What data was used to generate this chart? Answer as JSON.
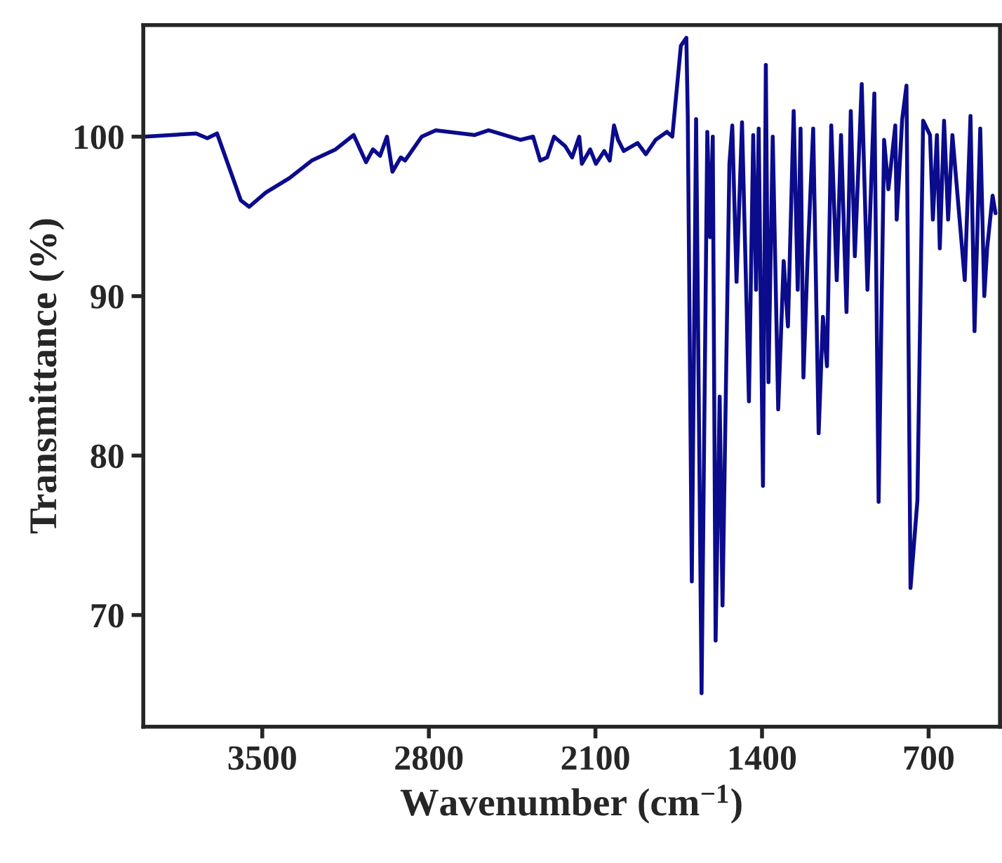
{
  "chart_data": {
    "type": "line",
    "xlabel": "Wavenumber (cm$^{−1}$)",
    "ylabel": "Transmittance (%)",
    "xlim": [
      4000,
      400
    ],
    "xticks": [
      3500,
      2800,
      2100,
      1400,
      700
    ],
    "ylim": [
      63,
      107
    ],
    "yticks": [
      70,
      80,
      90,
      100
    ],
    "grid": false,
    "legend": false,
    "marker": "none",
    "line_style": "solid",
    "series": [
      {
        "color": "#0b0b8c",
        "x": [
          3994,
          3778,
          3731,
          3690,
          3590,
          3555,
          3485,
          3386,
          3292,
          3192,
          3116,
          3064,
          3035,
          3005,
          2976,
          2953,
          2918,
          2900,
          2830,
          2771,
          2607,
          2549,
          2414,
          2362,
          2332,
          2303,
          2274,
          2227,
          2198,
          2168,
          2157,
          2122,
          2098,
          2063,
          2040,
          2022,
          2005,
          1981,
          1923,
          1888,
          1847,
          1800,
          1777,
          1741,
          1718,
          1712,
          1695,
          1677,
          1654,
          1630,
          1618,
          1607,
          1595,
          1578,
          1566,
          1537,
          1525,
          1507,
          1484,
          1455,
          1437,
          1425,
          1414,
          1396,
          1384,
          1373,
          1355,
          1332,
          1309,
          1291,
          1267,
          1250,
          1238,
          1226,
          1209,
          1185,
          1162,
          1144,
          1127,
          1109,
          1086,
          1068,
          1045,
          1027,
          1010,
          981,
          957,
          928,
          910,
          887,
          869,
          840,
          834,
          811,
          793,
          776,
          747,
          723,
          694,
          682,
          665,
          653,
          635,
          618,
          600,
          548,
          524,
          507,
          483,
          466,
          454,
          431,
          419
        ],
        "values": [
          100,
          100.2,
          99.9,
          100.2,
          96,
          95.6,
          96.5,
          97.4,
          98.5,
          99.2,
          100.1,
          98.4,
          99.2,
          98.8,
          100,
          97.8,
          98.7,
          98.5,
          100,
          100.4,
          100.1,
          100.4,
          99.8,
          100,
          98.5,
          98.7,
          100,
          99.4,
          98.7,
          100,
          98.3,
          99.2,
          98.3,
          99.1,
          98.5,
          100.7,
          99.8,
          99.1,
          99.6,
          98.9,
          99.8,
          100.3,
          100,
          105.7,
          106.2,
          101.3,
          72.1,
          101.1,
          65.1,
          100.3,
          93.7,
          100,
          68.4,
          83.7,
          70.6,
          98.3,
          100.7,
          90.9,
          100.9,
          83.4,
          100.1,
          90.4,
          100.5,
          78.1,
          104.5,
          84.6,
          100,
          82.9,
          92.2,
          88.1,
          101.6,
          90.4,
          100.5,
          84.9,
          92.2,
          100.5,
          81.4,
          88.7,
          85.6,
          100.7,
          91,
          100.1,
          89,
          101.6,
          92.5,
          103.3,
          90.4,
          102.7,
          77.1,
          99.8,
          96.7,
          100.7,
          94.8,
          101.1,
          103.2,
          71.7,
          77.2,
          101,
          100.1,
          94.8,
          100.1,
          93,
          101,
          94.8,
          100.1,
          91,
          101.3,
          87.8,
          100.5,
          90,
          93,
          96.3,
          95.2
        ]
      }
    ]
  }
}
